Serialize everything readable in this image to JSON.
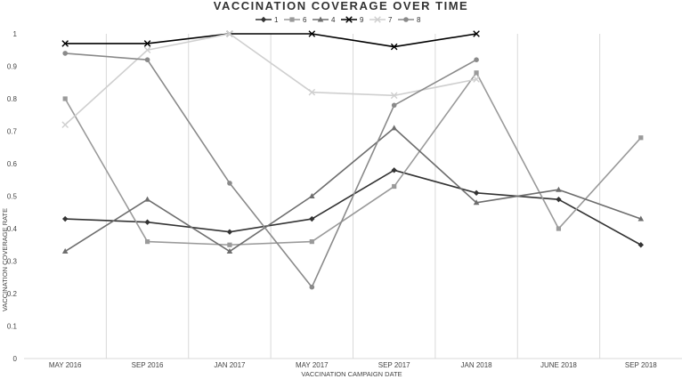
{
  "chart_data": {
    "type": "line",
    "title": "VACCINATION COVERAGE OVER TIME",
    "xlabel": "VACCINATION CAMPAIGN DATE",
    "ylabel": "VACCINATION COVERAGE RATE",
    "ylim": [
      0,
      1
    ],
    "yticks": [
      "0",
      "0.1",
      "0.2",
      "0.3",
      "0.4",
      "0.5",
      "0.6",
      "0.7",
      "0.8",
      "0.9",
      "1"
    ],
    "categories": [
      "MAY 2016",
      "SEP 2016",
      "JAN 2017",
      "MAY 2017",
      "SEP 2017",
      "JAN 2018",
      "JUNE 2018",
      "SEP 2018"
    ],
    "grid": "vertical",
    "legend_position": "top",
    "series": [
      {
        "name": "1",
        "color": "#333333",
        "marker": "diamond",
        "values": [
          0.43,
          0.42,
          0.39,
          0.43,
          0.58,
          0.51,
          0.49,
          0.35
        ]
      },
      {
        "name": "6",
        "color": "#9a9a9a",
        "marker": "square",
        "values": [
          0.8,
          0.36,
          0.35,
          0.36,
          0.53,
          0.88,
          0.4,
          0.68
        ]
      },
      {
        "name": "4",
        "color": "#6e6e6e",
        "marker": "triangle",
        "values": [
          0.33,
          0.49,
          0.33,
          0.5,
          0.71,
          0.48,
          0.52,
          0.43
        ]
      },
      {
        "name": "9",
        "color": "#000000",
        "marker": "x",
        "values": [
          0.97,
          0.97,
          1.0,
          1.0,
          0.96,
          1.0,
          null,
          null
        ]
      },
      {
        "name": "7",
        "color": "#cfcfcf",
        "marker": "x",
        "values": [
          0.72,
          0.95,
          1.0,
          0.82,
          0.81,
          0.86,
          null,
          null
        ]
      },
      {
        "name": "8",
        "color": "#8a8a8a",
        "marker": "circle",
        "values": [
          0.94,
          0.92,
          0.54,
          0.22,
          0.78,
          0.92,
          null,
          null
        ]
      }
    ]
  }
}
